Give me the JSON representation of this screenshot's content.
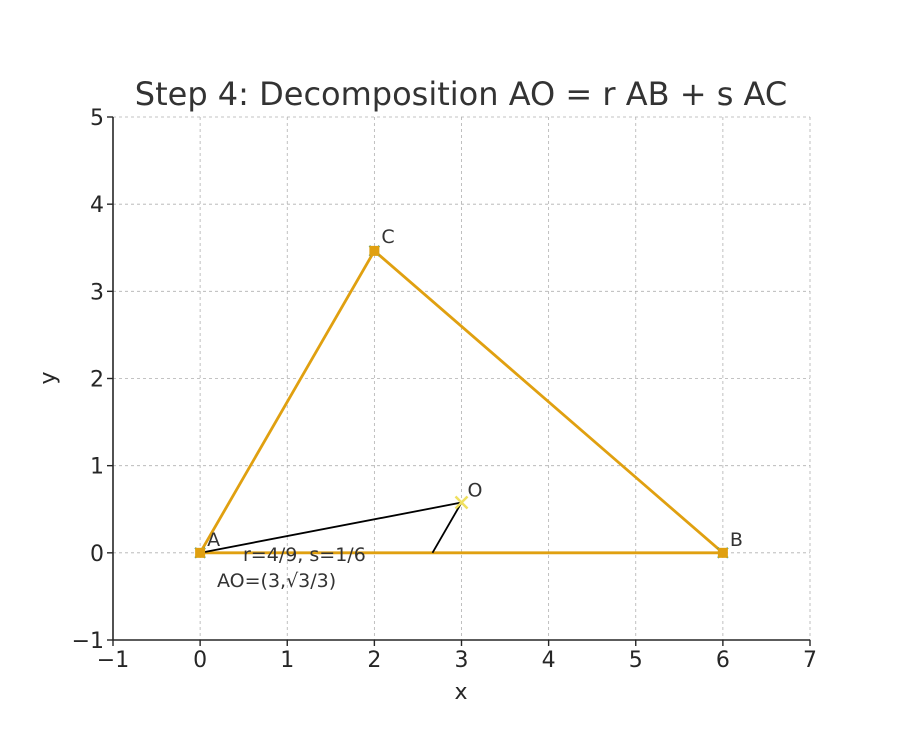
{
  "chart_data": {
    "type": "line",
    "title": "Step 4: Decomposition AO = r AB + s AC",
    "xlabel": "x",
    "ylabel": "y",
    "xlim": [
      -1,
      7
    ],
    "ylim": [
      -1,
      5
    ],
    "xticks": [
      -1,
      0,
      1,
      2,
      3,
      4,
      5,
      6,
      7
    ],
    "yticks": [
      -1,
      0,
      1,
      2,
      3,
      4,
      5
    ],
    "xtick_labels": [
      "−1",
      "0",
      "1",
      "2",
      "3",
      "4",
      "5",
      "6",
      "7"
    ],
    "ytick_labels": [
      "−1",
      "0",
      "1",
      "2",
      "3",
      "4",
      "5"
    ],
    "grid": true,
    "points": [
      {
        "label": "A",
        "x": 0,
        "y": 0
      },
      {
        "label": "B",
        "x": 6,
        "y": 0
      },
      {
        "label": "C",
        "x": 2,
        "y": 3.464
      },
      {
        "label": "O",
        "x": 3,
        "y": 0.577
      }
    ],
    "series": [
      {
        "values_xy": [
          [
            0,
            0
          ],
          [
            6,
            0
          ],
          [
            2,
            3.464
          ],
          [
            0,
            0
          ]
        ],
        "color": "#e0a010"
      },
      {
        "values_xy": [
          [
            0,
            0
          ],
          [
            3,
            0.577
          ]
        ],
        "color": "#000000"
      },
      {
        "values_xy": [
          [
            2.667,
            0
          ],
          [
            3,
            0.577
          ]
        ],
        "color": "#000000"
      }
    ],
    "annotations": [
      "r=4/9, s=1/6",
      "AO=(3,√3/3)"
    ],
    "colors": {
      "triangle": "#e0a010",
      "vector": "#000000",
      "marker_O": "#f0e060",
      "marker_base": "#2a9d8f"
    }
  }
}
